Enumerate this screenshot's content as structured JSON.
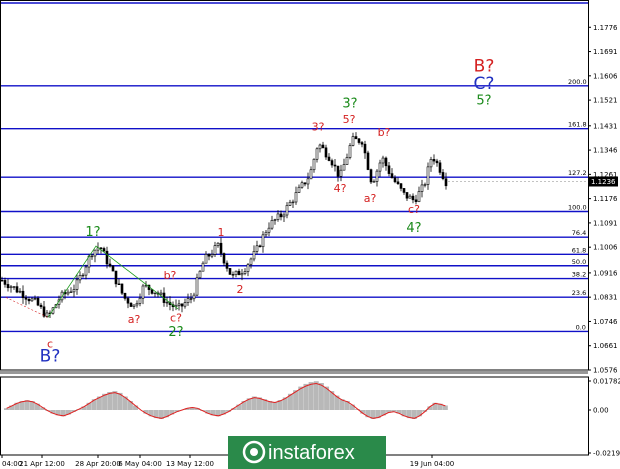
{
  "chart_data": {
    "type": "candlestick",
    "instrument_note": "EUR/USD price chart with Elliott wave labels",
    "current_price": "1.1236",
    "ylim": [
      1.0576,
      1.1861
    ],
    "y_ticks": [
      "1.1776",
      "1.1691",
      "1.1606",
      "1.1521",
      "1.1431",
      "1.1346",
      "1.1261",
      "1.1176",
      "1.1091",
      "1.1006",
      "1.0916",
      "1.0831",
      "1.0746",
      "1.0661",
      "1.0576"
    ],
    "x_ticks": [
      "04:00",
      "21 Apr 12:00",
      "28 Apr 20:00",
      "6 May 04:00",
      "13 May 12:00",
      "20",
      "19 Jun 04:00"
    ],
    "fib_levels": [
      {
        "label": "261.8",
        "price": 1.1861
      },
      {
        "label": "200.0",
        "price": 1.1571
      },
      {
        "label": "161.8",
        "price": 1.1421
      },
      {
        "label": "127.2",
        "price": 1.1251
      },
      {
        "label": "100.0",
        "price": 1.1131
      },
      {
        "label": "76.4",
        "price": 1.1041
      },
      {
        "label": "61.8",
        "price": 1.0981
      },
      {
        "label": "50.0",
        "price": 1.0941
      },
      {
        "label": "38.2",
        "price": 1.0896
      },
      {
        "label": "23.6",
        "price": 1.0831
      },
      {
        "label": "0.0",
        "price": 1.0711
      }
    ],
    "wave_labels": [
      {
        "text": "B?",
        "color": "#d42020",
        "size": "large"
      },
      {
        "text": "C?",
        "color": "#2030c0",
        "size": "large"
      },
      {
        "text": "5?",
        "color": "#1a8a1a",
        "size": "medium"
      },
      {
        "text": "3?",
        "color": "#1a8a1a",
        "size": "medium"
      },
      {
        "text": "5?",
        "color": "#d42020",
        "size": "small"
      },
      {
        "text": "3?",
        "color": "#d42020",
        "size": "small"
      },
      {
        "text": "b?",
        "color": "#d42020",
        "size": "small"
      },
      {
        "text": "4?",
        "color": "#d42020",
        "size": "small"
      },
      {
        "text": "a?",
        "color": "#d42020",
        "size": "small"
      },
      {
        "text": "c?",
        "color": "#d42020",
        "size": "small"
      },
      {
        "text": "4?",
        "color": "#1a8a1a",
        "size": "medium"
      },
      {
        "text": "1",
        "color": "#d42020",
        "size": "small"
      },
      {
        "text": "2",
        "color": "#d42020",
        "size": "small"
      },
      {
        "text": "1?",
        "color": "#1a8a1a",
        "size": "medium"
      },
      {
        "text": "b?",
        "color": "#d42020",
        "size": "small"
      },
      {
        "text": "a?",
        "color": "#d42020",
        "size": "small"
      },
      {
        "text": "c?",
        "color": "#d42020",
        "size": "small"
      },
      {
        "text": "2?",
        "color": "#1a8a1a",
        "size": "medium"
      },
      {
        "text": "c",
        "color": "#d42020",
        "size": "small"
      },
      {
        "text": "B?",
        "color": "#2030c0",
        "size": "large"
      }
    ],
    "oscillator": {
      "y_ticks": [
        "0.01782",
        "0.00",
        "-0.02198"
      ],
      "histogram": [
        0.2,
        0.5,
        0.8,
        1.0,
        1.1,
        1.0,
        0.7,
        0.3,
        -0.1,
        -0.4,
        -0.6,
        -0.7,
        -0.5,
        -0.2,
        0.1,
        0.4,
        0.8,
        1.2,
        1.5,
        1.8,
        2.0,
        2.1,
        1.9,
        1.5,
        1.0,
        0.5,
        0.0,
        -0.4,
        -0.7,
        -0.9,
        -1.0,
        -0.8,
        -0.5,
        -0.2,
        0.0,
        0.2,
        0.3,
        0.2,
        -0.1,
        -0.4,
        -0.6,
        -0.7,
        -0.5,
        -0.2,
        0.2,
        0.6,
        1.0,
        1.3,
        1.5,
        1.4,
        1.2,
        1.0,
        0.9,
        1.1,
        1.4,
        1.8,
        2.2,
        2.6,
        2.9,
        3.1,
        3.2,
        3.0,
        2.6,
        2.1,
        1.6,
        1.2,
        1.0,
        0.6,
        0.1,
        -0.4,
        -0.8,
        -1.0,
        -0.9,
        -0.6,
        -0.3,
        -0.2,
        -0.4,
        -0.7,
        -0.9,
        -1.0,
        -0.7,
        -0.2,
        0.4,
        0.8,
        0.7,
        0.5
      ]
    },
    "watermark": "instaforex"
  }
}
